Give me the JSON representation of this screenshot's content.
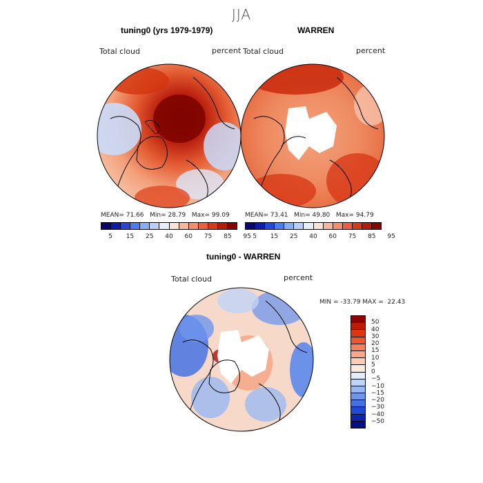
{
  "figure": {
    "title": "JJA"
  },
  "panels": [
    {
      "title": "tuning0 (yrs 1979-1979)",
      "variable": "Total cloud",
      "units": "percent",
      "stats": {
        "mean_label": "MEAN=",
        "mean": "71.66",
        "min_label": "Min=",
        "min": "28.79",
        "max_label": "Max=",
        "max": "99.09"
      }
    },
    {
      "title": "WARREN",
      "variable": "Total cloud",
      "units": "percent",
      "stats": {
        "mean_label": "MEAN=",
        "mean": "73.41",
        "min_label": "Min=",
        "min": "49.80",
        "max_label": "Max=",
        "max": "94.79"
      }
    },
    {
      "title": "tuning0 - WARREN",
      "variable": "Total cloud",
      "units": "percent",
      "stats": {
        "text": "MIN = -33.79 MAX =  22.43"
      }
    }
  ],
  "colorbar_abs": {
    "labels": [
      "5",
      "15",
      "25",
      "40",
      "60",
      "75",
      "85",
      "95"
    ],
    "colors": [
      "#08076e",
      "#0e1ba8",
      "#2546d9",
      "#4a7ef0",
      "#86aef6",
      "#b7d0fa",
      "#e6eefc",
      "#f9e3d5",
      "#f6b89c",
      "#f28f6c",
      "#ea6140",
      "#d83a18",
      "#b51b07",
      "#850500"
    ]
  },
  "colorbar_diff": {
    "labels": [
      "50",
      "40",
      "30",
      "20",
      "15",
      "10",
      "5",
      "0",
      "−5",
      "−10",
      "−15",
      "−20",
      "−30",
      "−40",
      "−50"
    ],
    "colors": [
      "#8f0400",
      "#c01b06",
      "#dd3712",
      "#ee5630",
      "#f5805a",
      "#f9a888",
      "#fbcdb7",
      "#fbe9dd",
      "#e3ecfb",
      "#c0d4f8",
      "#98b8f3",
      "#6f95ec",
      "#4671e2",
      "#2249d6",
      "#0d24b0",
      "#040f86"
    ]
  }
}
